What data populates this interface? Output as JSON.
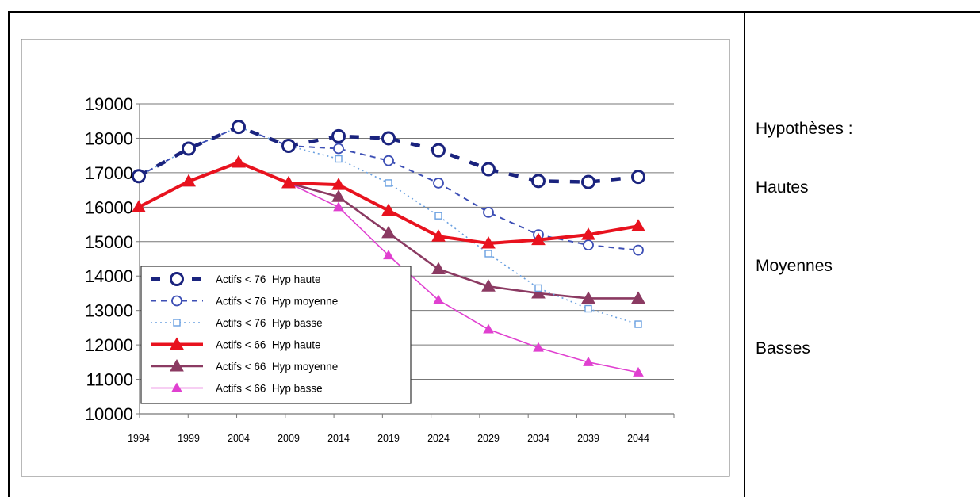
{
  "right_panel": {
    "heading": "Hypothèses :",
    "items": [
      "Hautes",
      "Moyennes",
      "Basses"
    ]
  },
  "chart_data": {
    "type": "line",
    "categories": [
      "1994",
      "1999",
      "2004",
      "2009",
      "2014",
      "2019",
      "2024",
      "2029",
      "2034",
      "2039",
      "2044"
    ],
    "ylim": [
      10000,
      19000
    ],
    "yticks": [
      "10000",
      "11000",
      "12000",
      "13000",
      "14000",
      "15000",
      "16000",
      "17000",
      "18000",
      "19000"
    ],
    "grid": true,
    "legend_position": "bottom-left",
    "series": [
      {
        "name": "Actifs < 76  Hyp haute",
        "color": "#1a237e",
        "style": "thick-dash",
        "marker": "circle-large",
        "values": [
          16900,
          17700,
          18330,
          17780,
          18060,
          18000,
          17650,
          17100,
          16760,
          16730,
          16880
        ]
      },
      {
        "name": "Actifs < 76  Hyp moyenne",
        "color": "#3d4fb5",
        "style": "dash",
        "marker": "circle",
        "values": [
          16900,
          17700,
          18330,
          17780,
          17700,
          17350,
          16700,
          15850,
          15200,
          14900,
          14750
        ]
      },
      {
        "name": "Actifs < 76  Hyp basse",
        "color": "#6aa0e0",
        "style": "dot",
        "marker": "square-small",
        "values": [
          16900,
          17700,
          18330,
          17780,
          17400,
          16700,
          15750,
          14650,
          13650,
          13050,
          12600
        ]
      },
      {
        "name": "Actifs < 66  Hyp haute",
        "color": "#e8121e",
        "style": "solid-thick",
        "marker": "triangle",
        "values": [
          16000,
          16750,
          17300,
          16700,
          16650,
          15900,
          15150,
          14950,
          15050,
          15200,
          15450
        ]
      },
      {
        "name": "Actifs < 66  Hyp moyenne",
        "color": "#8b3a62",
        "style": "solid",
        "marker": "triangle",
        "values": [
          16000,
          16750,
          17300,
          16700,
          16300,
          15250,
          14200,
          13700,
          13500,
          13350,
          13350
        ]
      },
      {
        "name": "Actifs < 66  Hyp basse",
        "color": "#e040d0",
        "style": "solid-thin",
        "marker": "triangle-small",
        "values": [
          16000,
          16750,
          17300,
          16700,
          16000,
          14600,
          13300,
          12450,
          11920,
          11500,
          11200
        ]
      }
    ]
  }
}
